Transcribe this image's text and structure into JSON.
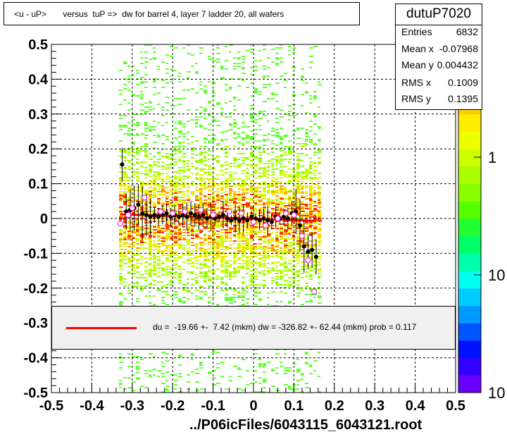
{
  "title": "<u - uP>       versus  tuP =>  dw for barrel 4, layer 7 ladder 20, all wafers",
  "stats": {
    "name": "dutuP7020",
    "rows": [
      {
        "label": "Entries",
        "value": "6832"
      },
      {
        "label": "Mean x",
        "value": "-0.07968"
      },
      {
        "label": "Mean y",
        "value": "0.004432"
      },
      {
        "label": "RMS x",
        "value": "0.1009"
      },
      {
        "label": "RMS y",
        "value": "0.1395"
      }
    ]
  },
  "fit_text": "du =  -19.66 +-  7.42 (mkm) dw = -326.82 +- 62.44 (mkm) prob = 0.117",
  "x_title": "../P06icFiles/6043115_6043121.root",
  "colors": {
    "fit_line": "#ff0000",
    "profile": "#000000",
    "open_points": "#ff00ff"
  },
  "chart_data": {
    "type": "heatmap",
    "title": "<u - uP>       versus  tuP =>  dw for barrel 4, layer 7 ladder 20, all wafers",
    "xlabel": "../P06icFiles/6043115_6043121.root",
    "ylabel": "",
    "xlim": [
      -0.5,
      0.5
    ],
    "ylim": [
      -0.5,
      0.5
    ],
    "x_ticks": [
      "-0.5",
      "-0.4",
      "-0.3",
      "-0.2",
      "-0.1",
      "0",
      "0.1",
      "0.2",
      "0.3",
      "0.4",
      "0.5"
    ],
    "y_ticks": [
      "-0.5",
      "-0.4",
      "-0.3",
      "-0.2",
      "-0.1",
      "0",
      "0.1",
      "0.2",
      "0.3",
      "0.4",
      "0.5"
    ],
    "grid": true,
    "z_scale": "log",
    "z_tick_labels": [
      "1",
      "10",
      "10"
    ],
    "density_core": {
      "x_range": [
        -0.33,
        0.15
      ],
      "y_center": 0.0,
      "y_spread": 0.12
    },
    "profile_points": {
      "x": [
        -0.325,
        -0.315,
        -0.305,
        -0.295,
        -0.285,
        -0.275,
        -0.265,
        -0.255,
        -0.245,
        -0.235,
        -0.225,
        -0.215,
        -0.205,
        -0.195,
        -0.185,
        -0.175,
        -0.165,
        -0.155,
        -0.145,
        -0.135,
        -0.125,
        -0.115,
        -0.105,
        -0.095,
        -0.085,
        -0.075,
        -0.065,
        -0.055,
        -0.045,
        -0.035,
        -0.025,
        -0.015,
        -0.005,
        0.005,
        0.015,
        0.025,
        0.035,
        0.045,
        0.055,
        0.065,
        0.075,
        0.085,
        0.095,
        0.105,
        0.115,
        0.125,
        0.135,
        0.145,
        0.155
      ],
      "y": [
        0.155,
        0.02,
        0.025,
        0.03,
        0.04,
        0.015,
        0.01,
        0.005,
        0.01,
        0.005,
        0.01,
        0.015,
        0.005,
        0.01,
        0.005,
        0.01,
        0.005,
        0.015,
        0.01,
        0.005,
        0.01,
        0.0,
        0.005,
        0.0,
        0.005,
        0.01,
        0.0,
        -0.005,
        0.0,
        -0.005,
        0.0,
        -0.005,
        0.005,
        0.0,
        -0.005,
        0.0,
        -0.005,
        -0.01,
        0.005,
        0.0,
        0.005,
        0.0,
        0.015,
        0.02,
        -0.02,
        -0.08,
        -0.095,
        -0.09,
        -0.11
      ]
    },
    "open_points": {
      "x": [
        -0.33,
        -0.31,
        -0.3,
        -0.27,
        -0.23,
        -0.2,
        -0.17,
        -0.13,
        -0.1,
        -0.06,
        -0.03,
        0.0,
        0.03,
        0.06,
        0.08,
        0.1,
        0.12,
        0.135,
        0.15
      ],
      "y": [
        -0.015,
        0.01,
        0.03,
        0.06,
        0.02,
        0.015,
        0.02,
        0.025,
        0.01,
        0.02,
        0.015,
        -0.01,
        -0.02,
        0.0,
        0.015,
        0.01,
        -0.05,
        -0.12,
        -0.21
      ]
    },
    "fit_line": {
      "x": [
        -0.33,
        0.155
      ],
      "y": [
        0.012,
        -0.007
      ]
    }
  }
}
